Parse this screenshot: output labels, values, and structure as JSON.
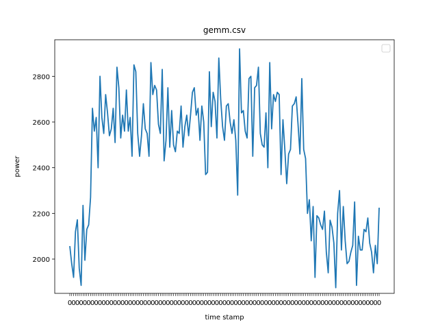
{
  "chart_data": {
    "type": "line",
    "title": "gemm.csv",
    "xlabel": "time stamp",
    "ylabel": "power",
    "ylim": [
      1850,
      2960
    ],
    "yticks": [
      2000,
      2200,
      2400,
      2600,
      2800
    ],
    "legend": "top-right",
    "legend_entries": [],
    "grid": false,
    "colors": {
      "line": "#1f77b4",
      "axes": "#000000",
      "background": "#ffffff"
    },
    "series": [
      {
        "values": [
          2057,
          1980,
          1920,
          2120,
          2172,
          1960,
          1885,
          2235,
          1995,
          2130,
          2150,
          2270,
          2660,
          2560,
          2620,
          2400,
          2800,
          2620,
          2550,
          2720,
          2640,
          2540,
          2570,
          2660,
          2510,
          2840,
          2750,
          2530,
          2630,
          2560,
          2740,
          2560,
          2620,
          2450,
          2850,
          2820,
          2550,
          2450,
          2540,
          2680,
          2570,
          2550,
          2450,
          2860,
          2720,
          2760,
          2740,
          2590,
          2550,
          2830,
          2430,
          2520,
          2750,
          2490,
          2650,
          2500,
          2470,
          2560,
          2550,
          2670,
          2490,
          2580,
          2630,
          2540,
          2630,
          2730,
          2750,
          2630,
          2660,
          2520,
          2670,
          2600,
          2370,
          2380,
          2820,
          2580,
          2730,
          2690,
          2530,
          2880,
          2700,
          2580,
          2520,
          2670,
          2680,
          2600,
          2550,
          2610,
          2520,
          2280,
          2920,
          2640,
          2650,
          2560,
          2530,
          2790,
          2800,
          2450,
          2750,
          2760,
          2840,
          2550,
          2500,
          2490,
          2640,
          2400,
          2860,
          2570,
          2720,
          2690,
          2730,
          2720,
          2370,
          2610,
          2480,
          2330,
          2460,
          2480,
          2670,
          2680,
          2710,
          2590,
          2460,
          2790,
          2480,
          2440,
          2200,
          2260,
          2080,
          2230,
          1920,
          2190,
          2180,
          2150,
          2130,
          2210,
          2030,
          1940,
          2170,
          2140,
          2070,
          1875,
          2200,
          2300,
          2040,
          2230,
          2080,
          1980,
          1990,
          2030,
          2060,
          2250,
          1885,
          2100,
          2040,
          2040,
          2130,
          2120,
          2180,
          2070,
          2030,
          1940,
          2060,
          1980,
          2225
        ]
      }
    ]
  }
}
